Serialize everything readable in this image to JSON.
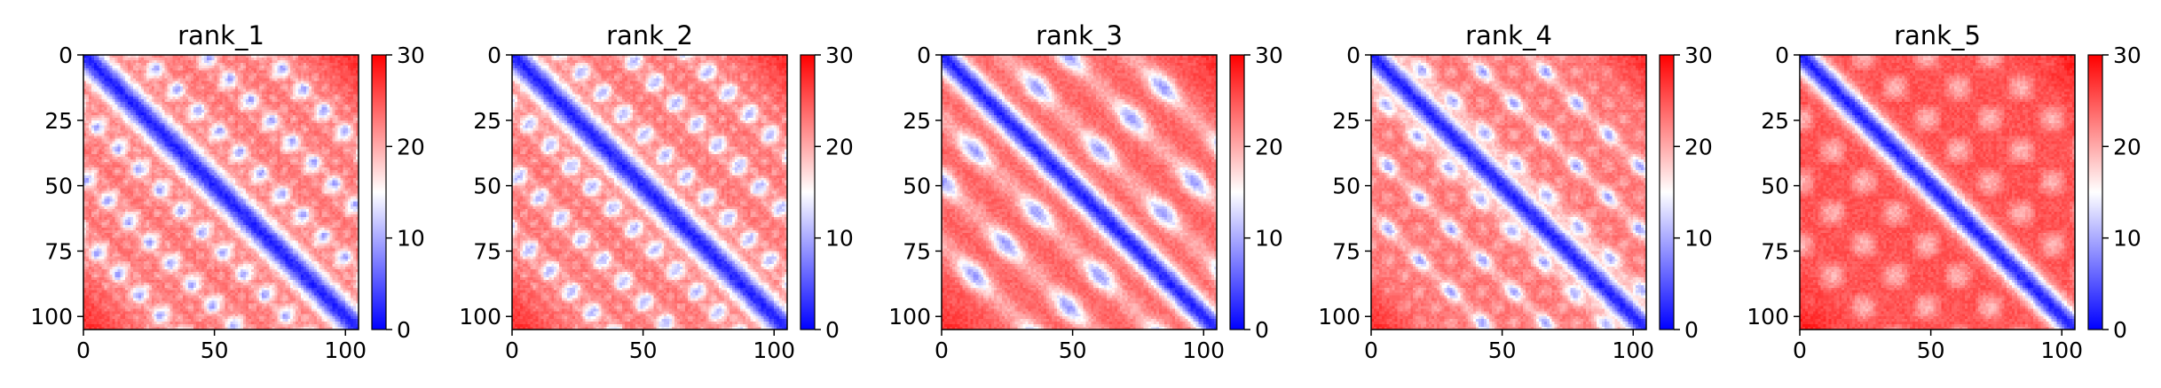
{
  "figure": {
    "background": "#ffffff"
  },
  "colormap": {
    "name": "bwr",
    "low": "#0000ff",
    "mid": "#ffffff",
    "high": "#ff0000"
  },
  "chart_data": [
    {
      "type": "heatmap",
      "title": "rank_1",
      "size": 105,
      "xlim": [
        0,
        105
      ],
      "ylim": [
        105,
        0
      ],
      "x_ticks": [
        0,
        50,
        100
      ],
      "y_ticks": [
        0,
        25,
        50,
        75,
        100
      ],
      "colorbar": {
        "range": [
          0,
          30
        ],
        "ticks": [
          0,
          10,
          20,
          30
        ]
      },
      "pattern": {
        "background": 23,
        "diagonal_width": 5.5,
        "band_offsets": [
          22,
          46,
          70
        ],
        "band_value": 11,
        "band_width": 3.5,
        "blob_period": 8,
        "far_value": 27
      }
    },
    {
      "type": "heatmap",
      "title": "rank_2",
      "size": 105,
      "xlim": [
        0,
        105
      ],
      "ylim": [
        105,
        0
      ],
      "x_ticks": [
        0,
        50,
        100
      ],
      "y_ticks": [
        0,
        25,
        50,
        75,
        100
      ],
      "colorbar": {
        "range": [
          0,
          30
        ],
        "ticks": [
          0,
          10,
          20,
          30
        ]
      },
      "pattern": {
        "background": 23,
        "diagonal_width": 5.5,
        "band_offsets": [
          20,
          44,
          68
        ],
        "band_value": 11,
        "band_width": 3.5,
        "blob_period": 8,
        "far_value": 27
      }
    },
    {
      "type": "heatmap",
      "title": "rank_3",
      "size": 105,
      "xlim": [
        0,
        105
      ],
      "ylim": [
        105,
        0
      ],
      "x_ticks": [
        0,
        50,
        100
      ],
      "y_ticks": [
        0,
        25,
        50,
        75,
        100
      ],
      "colorbar": {
        "range": [
          0,
          30
        ],
        "ticks": [
          0,
          10,
          20,
          30
        ]
      },
      "pattern": {
        "background": 24,
        "diagonal_width": 5,
        "band_offsets": [
          24,
          48,
          72
        ],
        "band_value": 12,
        "band_width": 4,
        "blob_period": 24,
        "far_value": 27
      }
    },
    {
      "type": "heatmap",
      "title": "rank_4",
      "size": 105,
      "xlim": [
        0,
        105
      ],
      "ylim": [
        105,
        0
      ],
      "x_ticks": [
        0,
        50,
        100
      ],
      "y_ticks": [
        0,
        25,
        50,
        75,
        100
      ],
      "colorbar": {
        "range": [
          0,
          30
        ],
        "ticks": [
          0,
          10,
          20,
          30
        ]
      },
      "pattern": {
        "background": 23,
        "diagonal_width": 5,
        "band_offsets": [
          14,
          36,
          60
        ],
        "band_value": 12,
        "band_width": 3,
        "blob_period": 12,
        "far_value": 27
      }
    },
    {
      "type": "heatmap",
      "title": "rank_5",
      "size": 105,
      "xlim": [
        0,
        105
      ],
      "ylim": [
        105,
        0
      ],
      "x_ticks": [
        0,
        50,
        100
      ],
      "y_ticks": [
        0,
        25,
        50,
        75,
        100
      ],
      "colorbar": {
        "range": [
          0,
          30
        ],
        "ticks": [
          0,
          10,
          20,
          30
        ]
      },
      "pattern": {
        "background": 25,
        "diagonal_width": 5,
        "band_offsets": [],
        "band_value": 14,
        "band_width": 3,
        "blob_period": 24,
        "far_value": 28
      }
    }
  ]
}
